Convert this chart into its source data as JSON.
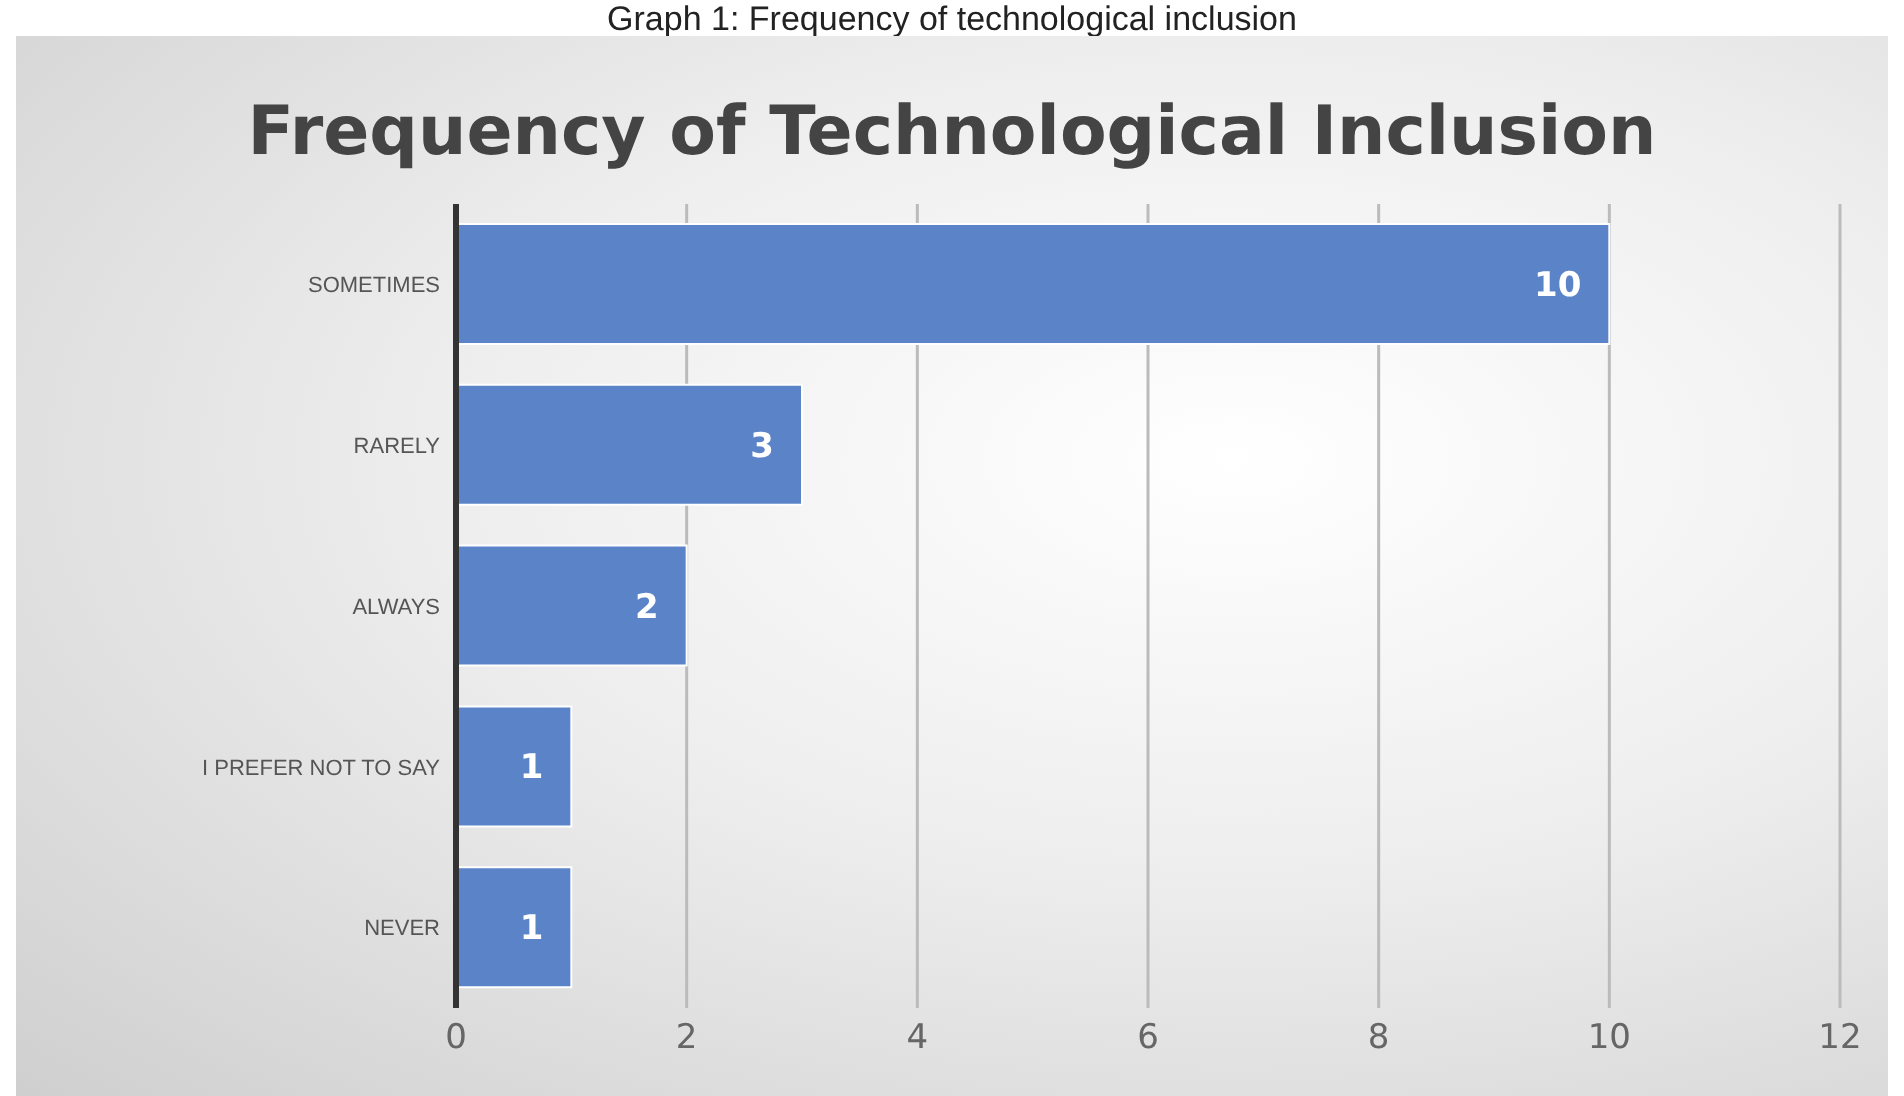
{
  "chart_data": {
    "type": "bar",
    "orientation": "horizontal",
    "title": "Frequency of Technological Inclusion",
    "annotations": [
      "Graph 1: Frequency of technological inclusion"
    ],
    "categories": [
      "SOMETIMES",
      "RARELY",
      "ALWAYS",
      "I PREFER NOT TO SAY",
      "NEVER"
    ],
    "values": [
      10,
      3,
      2,
      1,
      1
    ],
    "color": "#5b84c8",
    "xlim": [
      0,
      12
    ],
    "xticks": [
      0,
      2,
      4,
      6,
      8,
      10,
      12
    ],
    "grid": "x",
    "data_labels": true
  }
}
